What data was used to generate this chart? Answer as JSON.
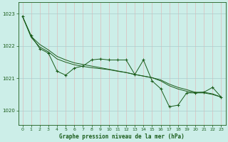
{
  "background_color": "#cceee8",
  "grid_color_v": "#ddbbbb",
  "grid_color_h": "#aacccc",
  "line_color": "#1a5c1a",
  "title": "Graphe pression niveau de la mer (hPa)",
  "xlim": [
    -0.5,
    23.5
  ],
  "ylim": [
    1019.55,
    1023.35
  ],
  "yticks": [
    1020,
    1021,
    1022,
    1023
  ],
  "xticks": [
    0,
    1,
    2,
    3,
    4,
    5,
    6,
    7,
    8,
    9,
    10,
    11,
    12,
    13,
    14,
    15,
    16,
    17,
    18,
    19,
    20,
    21,
    22,
    23
  ],
  "series1": [
    1022.92,
    1022.32,
    1021.92,
    1021.78,
    1021.22,
    1021.1,
    1021.32,
    1021.38,
    1021.57,
    1021.6,
    1021.57,
    1021.57,
    1021.57,
    1021.12,
    1021.57,
    1020.92,
    1020.68,
    1020.12,
    1020.17,
    1020.55,
    1020.55,
    1020.57,
    1020.72,
    1020.42
  ],
  "line1": [
    1022.92,
    1022.27,
    1021.97,
    1021.82,
    1021.6,
    1021.5,
    1021.42,
    1021.37,
    1021.33,
    1021.3,
    1021.27,
    1021.22,
    1021.18,
    1021.12,
    1021.07,
    1021.02,
    1020.92,
    1020.77,
    1020.67,
    1020.6,
    1020.55,
    1020.55,
    1020.5,
    1020.42
  ],
  "line2": [
    1022.92,
    1022.3,
    1022.05,
    1021.88,
    1021.68,
    1021.57,
    1021.48,
    1021.43,
    1021.38,
    1021.33,
    1021.28,
    1021.23,
    1021.18,
    1021.12,
    1021.07,
    1021.02,
    1020.95,
    1020.82,
    1020.72,
    1020.65,
    1020.57,
    1020.57,
    1020.52,
    1020.42
  ]
}
